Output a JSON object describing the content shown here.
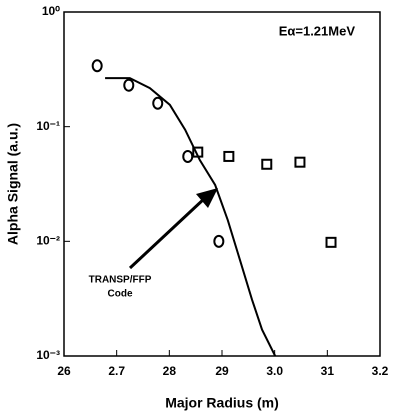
{
  "chart_data": {
    "type": "scatter",
    "annotations": [
      "Eα=1.21MeV",
      "TRANSP/FFP",
      "Code"
    ],
    "xlabel": "Major Radius (m)",
    "ylabel": "Alpha Signal (a.u.)",
    "xlim": [
      2.6,
      3.2
    ],
    "xticks": [
      {
        "value": 2.6,
        "label": "26"
      },
      2.7,
      {
        "value": 2.8,
        "label": "28"
      },
      {
        "value": 2.9,
        "label": "29"
      },
      {
        "value": 3.0,
        "label": "3.0"
      },
      {
        "value": 3.1,
        "label": "31"
      },
      3.2
    ],
    "ylim": [
      0.001,
      1
    ],
    "log_y": true,
    "yticks": [
      {
        "value": 1,
        "label": "10⁰"
      },
      {
        "value": 0.1,
        "label": "10⁻¹"
      },
      {
        "value": 0.01,
        "label": "10⁻²"
      },
      {
        "value": 0.001,
        "label": "10⁻³"
      }
    ],
    "series": [
      {
        "marker": "circle",
        "color": "#000000",
        "x": [
          2.663,
          2.723,
          2.778,
          2.835,
          2.894
        ],
        "values": [
          0.34,
          0.23,
          0.16,
          0.055,
          0.01
        ]
      },
      {
        "marker": "square",
        "color": "#000000",
        "x": [
          2.854,
          2.913,
          2.985,
          3.048,
          3.107
        ],
        "values": [
          0.06,
          0.055,
          0.047,
          0.049,
          0.0098
        ]
      },
      {
        "marker": "line",
        "color": "#000000",
        "x": [
          2.678,
          2.725,
          2.763,
          2.801,
          2.83,
          2.858,
          2.887,
          2.911,
          2.934,
          2.957,
          2.976,
          3.001
        ],
        "values": [
          0.265,
          0.265,
          0.217,
          0.155,
          0.094,
          0.051,
          0.031,
          0.0153,
          0.0069,
          0.0031,
          0.0017,
          0.001
        ]
      }
    ]
  }
}
